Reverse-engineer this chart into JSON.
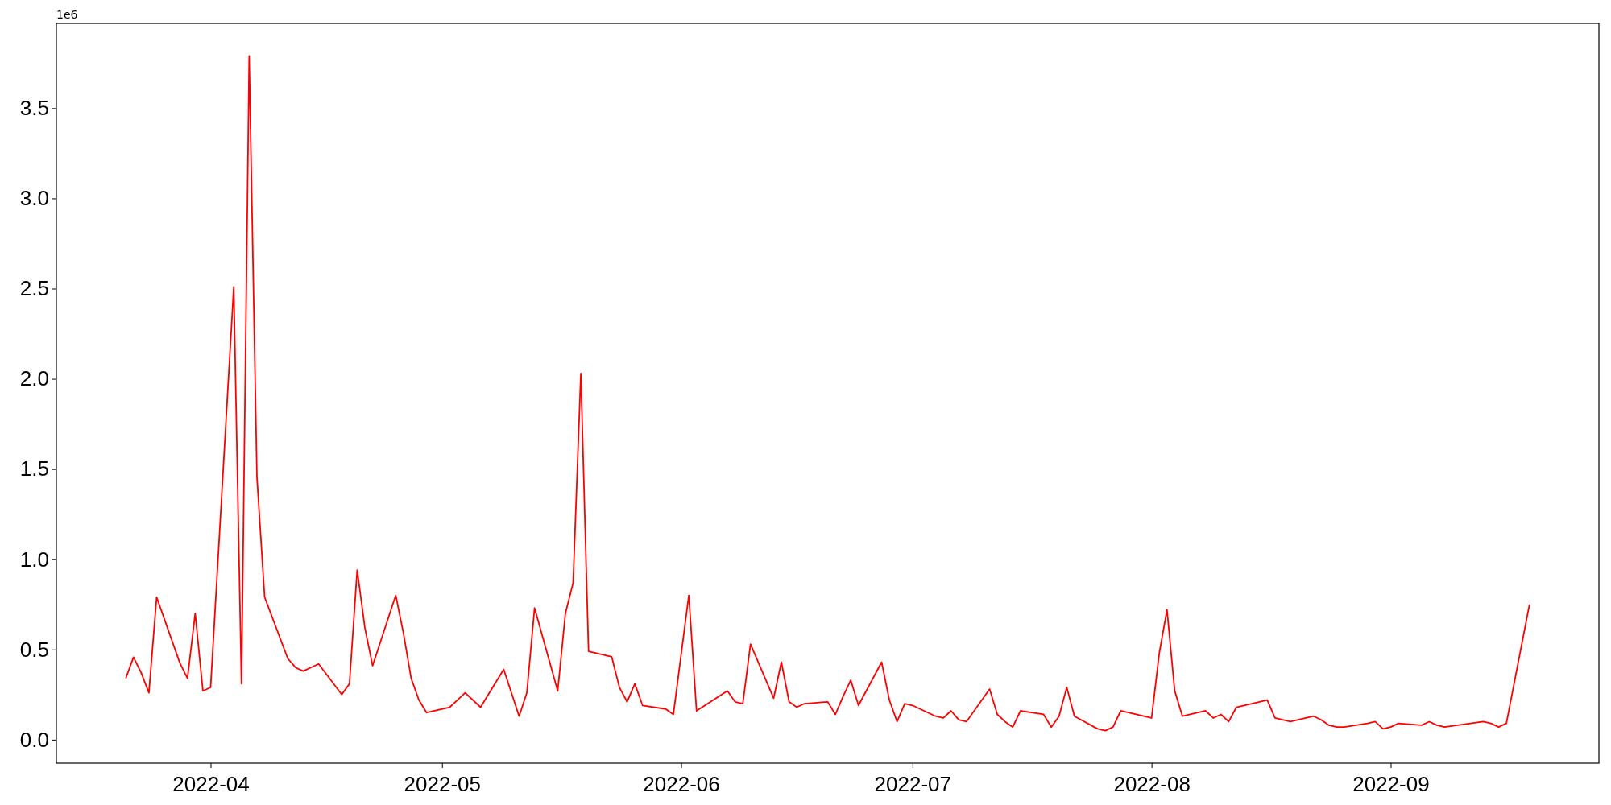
{
  "chart_data": {
    "type": "line",
    "annotations": [
      "1e6"
    ],
    "x": [
      "2022-03-21",
      "2022-03-22",
      "2022-03-23",
      "2022-03-24",
      "2022-03-25",
      "2022-03-28",
      "2022-03-29",
      "2022-03-30",
      "2022-03-31",
      "2022-04-01",
      "2022-04-04",
      "2022-04-05",
      "2022-04-06",
      "2022-04-07",
      "2022-04-08",
      "2022-04-11",
      "2022-04-12",
      "2022-04-13",
      "2022-04-14",
      "2022-04-15",
      "2022-04-18",
      "2022-04-19",
      "2022-04-20",
      "2022-04-21",
      "2022-04-22",
      "2022-04-25",
      "2022-04-26",
      "2022-04-27",
      "2022-04-28",
      "2022-04-29",
      "2022-05-02",
      "2022-05-03",
      "2022-05-04",
      "2022-05-06",
      "2022-05-09",
      "2022-05-11",
      "2022-05-12",
      "2022-05-13",
      "2022-05-16",
      "2022-05-17",
      "2022-05-18",
      "2022-05-19",
      "2022-05-20",
      "2022-05-23",
      "2022-05-24",
      "2022-05-25",
      "2022-05-26",
      "2022-05-27",
      "2022-05-30",
      "2022-05-31",
      "2022-06-02",
      "2022-06-03",
      "2022-06-07",
      "2022-06-08",
      "2022-06-09",
      "2022-06-10",
      "2022-06-13",
      "2022-06-14",
      "2022-06-15",
      "2022-06-16",
      "2022-06-17",
      "2022-06-20",
      "2022-06-21",
      "2022-06-22",
      "2022-06-23",
      "2022-06-24",
      "2022-06-27",
      "2022-06-28",
      "2022-06-29",
      "2022-06-30",
      "2022-07-01",
      "2022-07-04",
      "2022-07-05",
      "2022-07-06",
      "2022-07-07",
      "2022-07-08",
      "2022-07-11",
      "2022-07-12",
      "2022-07-13",
      "2022-07-14",
      "2022-07-15",
      "2022-07-18",
      "2022-07-19",
      "2022-07-20",
      "2022-07-21",
      "2022-07-22",
      "2022-07-25",
      "2022-07-26",
      "2022-07-27",
      "2022-07-28",
      "2022-07-29",
      "2022-08-01",
      "2022-08-02",
      "2022-08-03",
      "2022-08-04",
      "2022-08-05",
      "2022-08-08",
      "2022-08-09",
      "2022-08-10",
      "2022-08-11",
      "2022-08-12",
      "2022-08-16",
      "2022-08-17",
      "2022-08-18",
      "2022-08-19",
      "2022-08-22",
      "2022-08-23",
      "2022-08-24",
      "2022-08-25",
      "2022-08-26",
      "2022-08-29",
      "2022-08-30",
      "2022-08-31",
      "2022-09-01",
      "2022-09-02",
      "2022-09-05",
      "2022-09-06",
      "2022-09-07",
      "2022-09-08",
      "2022-09-13",
      "2022-09-14",
      "2022-09-15",
      "2022-09-16",
      "2022-09-19"
    ],
    "series": [
      {
        "color": "#ff0000",
        "values": [
          0.34,
          0.457,
          0.37,
          0.26,
          0.79,
          0.426,
          0.34,
          0.7,
          0.27,
          0.29,
          2.51,
          0.31,
          3.79,
          1.46,
          0.79,
          0.45,
          0.4,
          0.38,
          0.4,
          0.42,
          0.25,
          0.31,
          0.94,
          0.62,
          0.41,
          0.8,
          0.59,
          0.34,
          0.22,
          0.15,
          0.18,
          0.22,
          0.26,
          0.18,
          0.39,
          0.13,
          0.26,
          0.73,
          0.27,
          0.7,
          0.87,
          2.03,
          0.49,
          0.46,
          0.29,
          0.21,
          0.31,
          0.19,
          0.17,
          0.14,
          0.8,
          0.16,
          0.27,
          0.21,
          0.2,
          0.53,
          0.23,
          0.43,
          0.21,
          0.18,
          0.2,
          0.21,
          0.14,
          0.24,
          0.33,
          0.19,
          0.43,
          0.22,
          0.1,
          0.2,
          0.19,
          0.13,
          0.12,
          0.16,
          0.11,
          0.1,
          0.28,
          0.14,
          0.1,
          0.07,
          0.16,
          0.14,
          0.07,
          0.13,
          0.29,
          0.13,
          0.06,
          0.05,
          0.07,
          0.16,
          0.15,
          0.12,
          0.48,
          0.72,
          0.27,
          0.13,
          0.16,
          0.12,
          0.14,
          0.1,
          0.18,
          0.22,
          0.12,
          0.11,
          0.1,
          0.13,
          0.11,
          0.08,
          0.07,
          0.07,
          0.09,
          0.1,
          0.06,
          0.07,
          0.09,
          0.08,
          0.1,
          0.08,
          0.07,
          0.1,
          0.09,
          0.07,
          0.09,
          0.75
        ]
      }
    ],
    "xlim": [
      "2022-03-12",
      "2022-09-28"
    ],
    "xticks": [
      "2022-04",
      "2022-05",
      "2022-06",
      "2022-07",
      "2022-08",
      "2022-09"
    ],
    "ylim": [
      -0.13,
      3.97
    ],
    "yticks": [
      {
        "value": 0,
        "label": "0.0"
      },
      0.5,
      {
        "value": 1,
        "label": "1.0"
      },
      1.5,
      {
        "value": 2,
        "label": "2.0"
      },
      2.5,
      {
        "value": 3,
        "label": "3.0"
      },
      3.5
    ],
    "line_style": "solid"
  }
}
